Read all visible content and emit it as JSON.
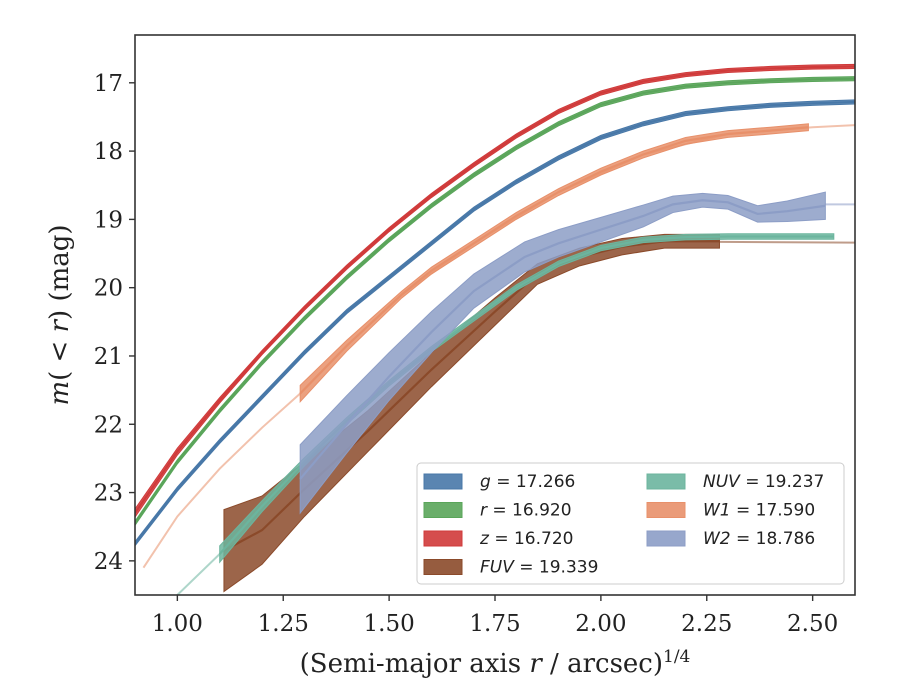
{
  "chart_data": {
    "type": "line",
    "xlabel": "(Semi-major axis r / arcsec)^{1/4}",
    "ylabel": "m(<r) (mag)",
    "xlim": [
      0.9,
      2.6
    ],
    "ylim": [
      24.5,
      16.3
    ],
    "y_inverted": true,
    "grid": false,
    "legend_placement": "lower right",
    "legend_columns": 2,
    "x_ticks": [
      "1.00",
      "1.25",
      "1.50",
      "1.75",
      "2.00",
      "2.25",
      "2.50"
    ],
    "y_ticks": [
      "17",
      "18",
      "19",
      "20",
      "21",
      "22",
      "23",
      "24"
    ],
    "series": [
      {
        "name": "g = 17.266",
        "band": "g",
        "total_mag": "17.266",
        "color": "#4878a8",
        "x": [
          0.9,
          1.0,
          1.1,
          1.2,
          1.3,
          1.4,
          1.5,
          1.6,
          1.7,
          1.8,
          1.9,
          2.0,
          2.1,
          2.2,
          2.3,
          2.4,
          2.5,
          2.6
        ],
        "y": [
          23.75,
          22.95,
          22.25,
          21.6,
          20.95,
          20.35,
          19.85,
          19.35,
          18.85,
          18.45,
          18.1,
          17.8,
          17.6,
          17.45,
          17.38,
          17.33,
          17.3,
          17.28
        ],
        "halfwidth": [
          0.03
        ]
      },
      {
        "name": "r = 16.920",
        "band": "r",
        "total_mag": "16.920",
        "color": "#5aa55a",
        "x": [
          0.9,
          1.0,
          1.1,
          1.2,
          1.3,
          1.4,
          1.5,
          1.6,
          1.7,
          1.8,
          1.9,
          2.0,
          2.1,
          2.2,
          2.3,
          2.4,
          2.5,
          2.6
        ],
        "y": [
          23.45,
          22.55,
          21.8,
          21.1,
          20.45,
          19.85,
          19.3,
          18.8,
          18.35,
          17.95,
          17.6,
          17.32,
          17.15,
          17.05,
          17.0,
          16.97,
          16.95,
          16.94
        ],
        "halfwidth": [
          0.03
        ]
      },
      {
        "name": "z = 16.720",
        "band": "z",
        "total_mag": "16.720",
        "color": "#d03a3a",
        "x": [
          0.9,
          1.0,
          1.1,
          1.2,
          1.3,
          1.4,
          1.5,
          1.6,
          1.7,
          1.8,
          1.9,
          2.0,
          2.1,
          2.2,
          2.3,
          2.4,
          2.5,
          2.6
        ],
        "y": [
          23.3,
          22.4,
          21.65,
          20.95,
          20.3,
          19.7,
          19.15,
          18.65,
          18.2,
          17.78,
          17.42,
          17.15,
          16.98,
          16.88,
          16.82,
          16.79,
          16.77,
          16.76
        ],
        "halfwidth": [
          0.06,
          0.05,
          0.04,
          0.03,
          0.03,
          0.03,
          0.03,
          0.03,
          0.03,
          0.03,
          0.03,
          0.03,
          0.03,
          0.03,
          0.03,
          0.03,
          0.03,
          0.03
        ]
      },
      {
        "name": "FUV = 19.339",
        "band": "FUV",
        "total_mag": "19.339",
        "color": "#8b4a2a",
        "x": [
          1.11,
          1.2,
          1.3,
          1.45,
          1.6,
          1.75,
          1.85,
          1.95,
          2.05,
          2.15,
          2.28
        ],
        "y": [
          23.85,
          23.55,
          22.95,
          22.1,
          21.2,
          20.35,
          19.8,
          19.55,
          19.4,
          19.32,
          19.32
        ],
        "halfwidth": [
          0.6,
          0.5,
          0.4,
          0.3,
          0.25,
          0.2,
          0.15,
          0.13,
          0.12,
          0.1,
          0.1
        ],
        "extrapolated_x": [
          2.28,
          2.6
        ],
        "extrapolated_y": [
          19.33,
          19.34
        ]
      },
      {
        "name": "NUV = 19.237",
        "band": "NUV",
        "total_mag": "19.237",
        "color": "#6cb59e",
        "x": [
          1.1,
          1.2,
          1.3,
          1.4,
          1.5,
          1.6,
          1.7,
          1.8,
          1.9,
          2.0,
          2.1,
          2.2,
          2.3,
          2.4,
          2.55
        ],
        "y": [
          23.9,
          23.2,
          22.55,
          21.95,
          21.4,
          20.9,
          20.45,
          20.0,
          19.65,
          19.42,
          19.3,
          19.26,
          19.25,
          19.25,
          19.25
        ],
        "halfwidth": [
          0.12,
          0.08,
          0.06,
          0.05,
          0.04,
          0.04,
          0.04,
          0.04,
          0.04,
          0.04,
          0.04,
          0.04,
          0.04,
          0.04,
          0.04
        ],
        "extrapolated_x": [
          0.9,
          1.0,
          1.1
        ],
        "extrapolated_y": [
          25.1,
          24.5,
          23.9
        ]
      },
      {
        "name": "W1 = 17.590",
        "band": "W1",
        "total_mag": "17.590",
        "color": "#e8906a",
        "x": [
          1.29,
          1.4,
          1.53,
          1.6,
          1.7,
          1.8,
          1.9,
          2.0,
          2.1,
          2.2,
          2.3,
          2.4,
          2.49
        ],
        "y": [
          21.55,
          20.85,
          20.1,
          19.75,
          19.35,
          18.95,
          18.6,
          18.3,
          18.05,
          17.85,
          17.75,
          17.7,
          17.65
        ],
        "halfwidth": [
          0.12,
          0.08,
          0.05,
          0.05,
          0.05,
          0.05,
          0.05,
          0.05,
          0.05,
          0.05,
          0.05,
          0.05,
          0.05
        ],
        "extrapolated_x": [
          0.92,
          1.0,
          1.1,
          1.2,
          1.29,
          1.4,
          1.53,
          1.7,
          1.9,
          2.1,
          2.3,
          2.5,
          2.6
        ],
        "extrapolated_y": [
          24.1,
          23.35,
          22.65,
          22.05,
          21.55,
          20.85,
          20.1,
          19.35,
          18.6,
          18.05,
          17.75,
          17.65,
          17.62
        ]
      },
      {
        "name": "W2 = 18.786",
        "band": "W2",
        "total_mag": "18.786",
        "color": "#8c9dc6",
        "x": [
          1.29,
          1.4,
          1.5,
          1.6,
          1.7,
          1.82,
          1.9,
          2.0,
          2.1,
          2.17,
          2.24,
          2.3,
          2.37,
          2.44,
          2.53
        ],
        "y": [
          22.8,
          22.0,
          21.3,
          20.65,
          20.05,
          19.55,
          19.35,
          19.15,
          18.95,
          18.78,
          18.72,
          18.75,
          18.92,
          18.88,
          18.8
        ],
        "halfwidth": [
          0.5,
          0.42,
          0.35,
          0.3,
          0.25,
          0.22,
          0.2,
          0.18,
          0.16,
          0.12,
          0.1,
          0.1,
          0.12,
          0.15,
          0.2
        ],
        "extrapolated_x": [
          2.53,
          2.6
        ],
        "extrapolated_y": [
          18.78,
          18.78
        ]
      }
    ]
  }
}
